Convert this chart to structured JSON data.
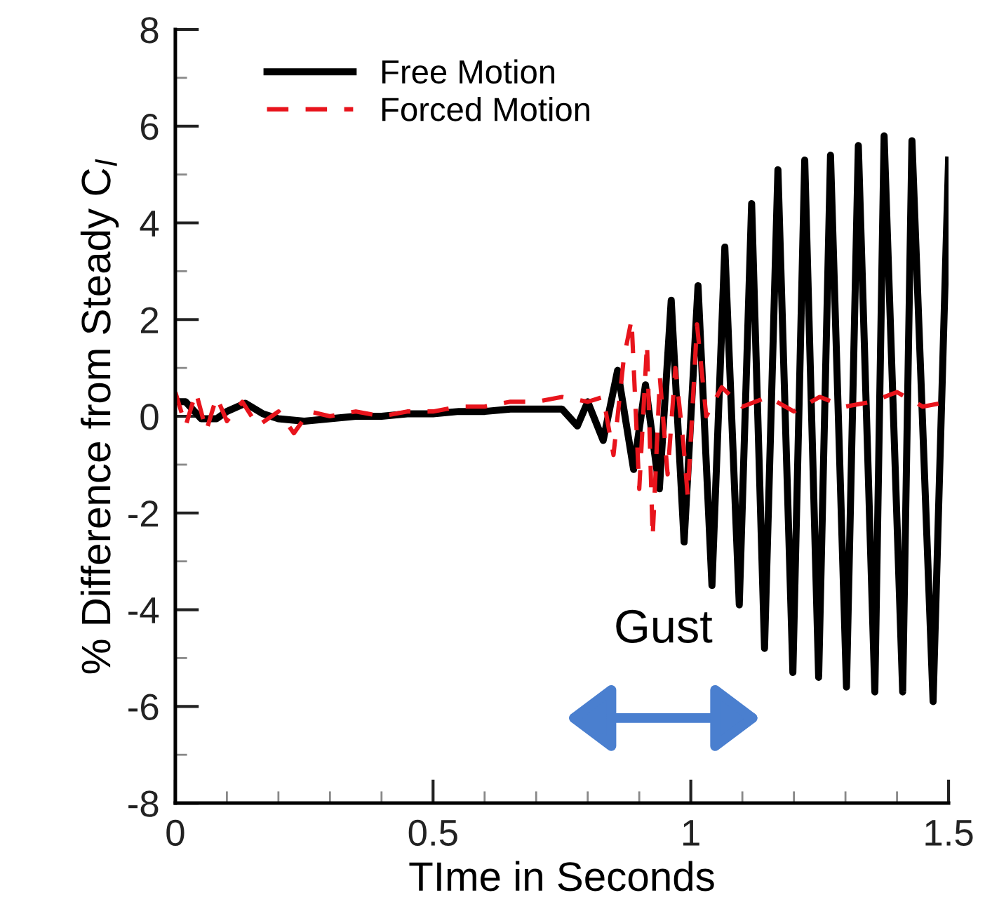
{
  "chart_data": {
    "type": "line",
    "xlabel": "TIme in Seconds",
    "ylabel": "% Difference from Steady C$_{l}$",
    "xlim": [
      0,
      1.5
    ],
    "ylim": [
      -8,
      8
    ],
    "xticks": [
      0,
      {
        "value": 0.1,
        "label": null
      },
      {
        "value": 0.2,
        "label": null
      },
      {
        "value": 0.3,
        "label": null
      },
      {
        "value": 0.4,
        "label": null
      },
      0.5,
      {
        "value": 0.6,
        "label": null
      },
      {
        "value": 0.7,
        "label": null
      },
      {
        "value": 0.8,
        "label": null
      },
      {
        "value": 0.9,
        "label": null
      },
      1,
      {
        "value": 1.1,
        "label": null
      },
      {
        "value": 1.2,
        "label": null
      },
      {
        "value": 1.3,
        "label": null
      },
      {
        "value": 1.4,
        "label": null
      },
      1.5
    ],
    "yticks": [
      -8,
      {
        "value": -7,
        "label": null
      },
      -6,
      {
        "value": -5,
        "label": null
      },
      -4,
      {
        "value": -3,
        "label": null
      },
      -2,
      {
        "value": -1,
        "label": null
      },
      0,
      {
        "value": 1,
        "label": null
      },
      2,
      {
        "value": 3,
        "label": null
      },
      4,
      {
        "value": 5,
        "label": null
      },
      6,
      {
        "value": 7,
        "label": null
      },
      8
    ],
    "grid": false,
    "legend": "top left",
    "marker": "none",
    "annotations": [
      "Gust"
    ],
    "series": [
      {
        "name": "Free Motion",
        "color": "#000000",
        "line_style": "solid",
        "x": [
          0,
          0.02,
          0.05,
          0.08,
          0.1,
          0.136,
          0.17,
          0.2,
          0.25,
          0.3,
          0.35,
          0.4,
          0.45,
          0.5,
          0.55,
          0.6,
          0.65,
          0.7,
          0.75,
          0.78,
          0.8,
          0.83,
          0.858,
          0.889,
          0.912,
          0.939,
          0.962,
          0.987,
          1.014,
          1.041,
          1.066,
          1.094,
          1.118,
          1.143,
          1.169,
          1.198,
          1.221,
          1.248,
          1.271,
          1.302,
          1.325,
          1.357,
          1.375,
          1.411,
          1.429,
          1.47,
          1.5
        ],
        "values": [
          0.3,
          0.3,
          -0.05,
          -0.05,
          0.1,
          0.27,
          0.05,
          -0.05,
          -0.1,
          -0.05,
          0,
          0,
          0.05,
          0.05,
          0.1,
          0.1,
          0.15,
          0.15,
          0.15,
          -0.2,
          0.3,
          -0.5,
          0.95,
          -1.1,
          0.65,
          -1.5,
          2.4,
          -2.6,
          2.7,
          -3.5,
          3.5,
          -3.9,
          4.4,
          -4.8,
          5.1,
          -5.3,
          5.3,
          -5.4,
          5.4,
          -5.6,
          5.6,
          -5.7,
          5.8,
          -5.7,
          5.7,
          -5.9,
          5.3
        ]
      },
      {
        "name": "Forced Motion",
        "color": "#e8141c",
        "line_style": "dashed",
        "x": [
          0,
          0.02,
          0.04,
          0.06,
          0.08,
          0.1,
          0.13,
          0.16,
          0.2,
          0.23,
          0.26,
          0.3,
          0.35,
          0.4,
          0.45,
          0.5,
          0.55,
          0.6,
          0.65,
          0.7,
          0.75,
          0.8,
          0.83,
          0.85,
          0.87,
          0.885,
          0.9,
          0.915,
          0.926,
          0.94,
          0.955,
          0.97,
          0.985,
          0.994,
          1.012,
          1.03,
          1.06,
          1.1,
          1.15,
          1.2,
          1.25,
          1.3,
          1.35,
          1.4,
          1.45,
          1.5
        ],
        "values": [
          0.5,
          -0.2,
          0.5,
          -0.3,
          0.4,
          -0.1,
          0.3,
          -0.2,
          0.1,
          -0.35,
          0.1,
          0,
          0.1,
          0,
          0.1,
          0.1,
          0.2,
          0.2,
          0.3,
          0.3,
          0.4,
          0.3,
          0.4,
          -0.8,
          1.2,
          2.0,
          -1.5,
          1.5,
          -2.5,
          0.8,
          -1.2,
          1.0,
          -0.5,
          -1.65,
          1.9,
          0,
          0.6,
          0.2,
          0.4,
          0.1,
          0.4,
          0.2,
          0.3,
          0.5,
          0.2,
          0.3
        ]
      }
    ]
  }
}
